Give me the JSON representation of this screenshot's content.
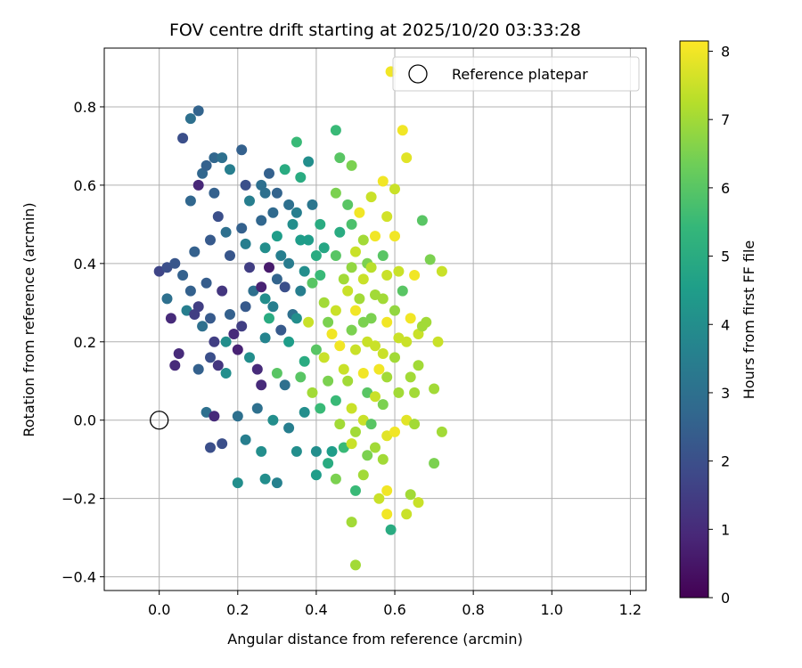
{
  "chart_data": {
    "type": "scatter",
    "title": "FOV centre drift starting at 2025/10/20 03:33:28",
    "xlabel": "Angular distance from reference (arcmin)",
    "ylabel": "Rotation from reference (arcmin)",
    "xlim": [
      -0.14,
      1.24
    ],
    "ylim": [
      -0.435,
      0.95
    ],
    "x_ticks": [
      0.0,
      0.2,
      0.4,
      0.6,
      0.8,
      1.0,
      1.2
    ],
    "x_tick_labels": [
      "0.0",
      "0.2",
      "0.4",
      "0.6",
      "0.8",
      "1.0",
      "1.2"
    ],
    "y_ticks": [
      -0.4,
      -0.2,
      0.0,
      0.2,
      0.4,
      0.6,
      0.8
    ],
    "y_tick_labels": [
      "−0.4",
      "−0.2",
      "0.0",
      "0.2",
      "0.4",
      "0.6",
      "0.8"
    ],
    "grid": true,
    "legend": {
      "location": "top-right",
      "entries": [
        "Reference platepar"
      ]
    },
    "reference_point": {
      "x": 0.0,
      "y": 0.0,
      "label": "Reference platepar"
    },
    "colorbar": {
      "label": "Hours from first FF file",
      "colormap": "viridis",
      "range": [
        0,
        8.15
      ],
      "ticks": [
        0,
        1,
        2,
        3,
        4,
        5,
        6,
        7,
        8
      ],
      "tick_labels": [
        "0",
        "1",
        "2",
        "3",
        "4",
        "5",
        "6",
        "7",
        "8"
      ]
    },
    "colormap_stops": [
      "#440154",
      "#482878",
      "#3e4989",
      "#31688e",
      "#26828e",
      "#1f9e89",
      "#35b779",
      "#6ece58",
      "#b5de2b",
      "#fde725"
    ],
    "series": [
      {
        "name": "Hours from first FF file",
        "points": [
          [
            0.06,
            0.72,
            2.0
          ],
          [
            0.1,
            0.79,
            2.6
          ],
          [
            0.08,
            0.77,
            3.0
          ],
          [
            0.02,
            0.31,
            3.0
          ],
          [
            0.03,
            0.26,
            1.0
          ],
          [
            0.05,
            0.17,
            1.0
          ],
          [
            0.04,
            0.14,
            1.0
          ],
          [
            0.0,
            0.38,
            1.7
          ],
          [
            0.02,
            0.39,
            2.0
          ],
          [
            0.04,
            0.4,
            2.2
          ],
          [
            0.06,
            0.37,
            2.5
          ],
          [
            0.08,
            0.33,
            2.5
          ],
          [
            0.07,
            0.28,
            3.5
          ],
          [
            0.09,
            0.27,
            1.5
          ],
          [
            0.1,
            0.29,
            1.5
          ],
          [
            0.09,
            0.43,
            2.5
          ],
          [
            0.1,
            0.6,
            0.9
          ],
          [
            0.08,
            0.56,
            2.7
          ],
          [
            0.11,
            0.63,
            2.7
          ],
          [
            0.12,
            0.65,
            2.5
          ],
          [
            0.14,
            0.58,
            2.5
          ],
          [
            0.14,
            0.67,
            2.7
          ],
          [
            0.15,
            0.52,
            2.0
          ],
          [
            0.13,
            0.46,
            2.3
          ],
          [
            0.12,
            0.35,
            2.4
          ],
          [
            0.13,
            0.26,
            2.3
          ],
          [
            0.11,
            0.24,
            3.0
          ],
          [
            0.14,
            0.2,
            1.5
          ],
          [
            0.13,
            0.16,
            2.0
          ],
          [
            0.15,
            0.14,
            1.3
          ],
          [
            0.1,
            0.13,
            2.5
          ],
          [
            0.12,
            0.02,
            3.0
          ],
          [
            0.14,
            0.01,
            1.0
          ],
          [
            0.13,
            -0.07,
            2.0
          ],
          [
            0.16,
            0.67,
            3.0
          ],
          [
            0.18,
            0.64,
            3.5
          ],
          [
            0.17,
            0.48,
            3.0
          ],
          [
            0.18,
            0.42,
            2.2
          ],
          [
            0.16,
            0.33,
            1.3
          ],
          [
            0.18,
            0.27,
            2.5
          ],
          [
            0.17,
            0.2,
            4.0
          ],
          [
            0.19,
            0.22,
            1.0
          ],
          [
            0.2,
            0.18,
            0.8
          ],
          [
            0.17,
            0.12,
            4.0
          ],
          [
            0.16,
            -0.06,
            2.0
          ],
          [
            0.2,
            0.01,
            3.0
          ],
          [
            0.2,
            -0.16,
            4.0
          ],
          [
            0.21,
            0.69,
            2.5
          ],
          [
            0.22,
            0.6,
            2.0
          ],
          [
            0.23,
            0.56,
            3.5
          ],
          [
            0.21,
            0.49,
            2.5
          ],
          [
            0.22,
            0.45,
            3.5
          ],
          [
            0.23,
            0.39,
            1.5
          ],
          [
            0.24,
            0.33,
            3.0
          ],
          [
            0.22,
            0.29,
            2.3
          ],
          [
            0.21,
            0.24,
            1.5
          ],
          [
            0.23,
            0.16,
            4.0
          ],
          [
            0.25,
            0.13,
            1.0
          ],
          [
            0.22,
            -0.05,
            3.5
          ],
          [
            0.26,
            0.6,
            3.0
          ],
          [
            0.27,
            0.58,
            3.0
          ],
          [
            0.26,
            0.51,
            2.7
          ],
          [
            0.27,
            0.44,
            4.0
          ],
          [
            0.28,
            0.39,
            0.6
          ],
          [
            0.26,
            0.34,
            0.8
          ],
          [
            0.27,
            0.31,
            4.0
          ],
          [
            0.28,
            0.26,
            5.0
          ],
          [
            0.27,
            0.21,
            3.7
          ],
          [
            0.26,
            0.09,
            1.0
          ],
          [
            0.25,
            0.03,
            3.0
          ],
          [
            0.26,
            -0.08,
            4.0
          ],
          [
            0.27,
            -0.15,
            4.0
          ],
          [
            0.28,
            0.63,
            2.5
          ],
          [
            0.3,
            0.58,
            2.6
          ],
          [
            0.29,
            0.53,
            2.8
          ],
          [
            0.3,
            0.47,
            4.5
          ],
          [
            0.31,
            0.42,
            3.5
          ],
          [
            0.3,
            0.36,
            2.6
          ],
          [
            0.29,
            0.29,
            3.5
          ],
          [
            0.31,
            0.23,
            2.3
          ],
          [
            0.3,
            0.12,
            6.0
          ],
          [
            0.29,
            0.0,
            4.0
          ],
          [
            0.3,
            -0.16,
            3.6
          ],
          [
            0.32,
            0.64,
            5.0
          ],
          [
            0.33,
            0.55,
            3.0
          ],
          [
            0.34,
            0.5,
            4.0
          ],
          [
            0.33,
            0.4,
            3.4
          ],
          [
            0.32,
            0.34,
            2.0
          ],
          [
            0.34,
            0.27,
            3.0
          ],
          [
            0.33,
            0.2,
            4.5
          ],
          [
            0.32,
            0.09,
            3.0
          ],
          [
            0.33,
            -0.02,
            3.5
          ],
          [
            0.35,
            0.71,
            5.5
          ],
          [
            0.36,
            0.62,
            5.0
          ],
          [
            0.35,
            0.53,
            3.5
          ],
          [
            0.36,
            0.46,
            4.5
          ],
          [
            0.37,
            0.38,
            4.0
          ],
          [
            0.36,
            0.33,
            3.5
          ],
          [
            0.35,
            0.26,
            4.0
          ],
          [
            0.37,
            0.15,
            5.0
          ],
          [
            0.36,
            0.11,
            6.0
          ],
          [
            0.35,
            -0.08,
            4.0
          ],
          [
            0.38,
            0.66,
            4.0
          ],
          [
            0.39,
            0.55,
            3.2
          ],
          [
            0.38,
            0.46,
            4.5
          ],
          [
            0.4,
            0.42,
            5.0
          ],
          [
            0.39,
            0.35,
            6.0
          ],
          [
            0.38,
            0.25,
            7.5
          ],
          [
            0.4,
            0.18,
            6.0
          ],
          [
            0.39,
            0.07,
            7.0
          ],
          [
            0.37,
            0.02,
            4.0
          ],
          [
            0.4,
            -0.08,
            4.0
          ],
          [
            0.4,
            -0.14,
            4.5
          ],
          [
            0.41,
            0.5,
            5.0
          ],
          [
            0.42,
            0.44,
            4.8
          ],
          [
            0.41,
            0.37,
            5.5
          ],
          [
            0.42,
            0.3,
            7.0
          ],
          [
            0.43,
            0.25,
            6.5
          ],
          [
            0.42,
            0.16,
            7.5
          ],
          [
            0.43,
            0.1,
            6.5
          ],
          [
            0.44,
            0.22,
            8.0
          ],
          [
            0.41,
            0.03,
            5.5
          ],
          [
            0.44,
            -0.08,
            4.5
          ],
          [
            0.43,
            -0.11,
            5.0
          ],
          [
            0.45,
            0.74,
            5.5
          ],
          [
            0.46,
            0.67,
            6.0
          ],
          [
            0.45,
            0.58,
            6.5
          ],
          [
            0.46,
            0.48,
            5.0
          ],
          [
            0.45,
            0.42,
            6.0
          ],
          [
            0.47,
            0.36,
            7.0
          ],
          [
            0.45,
            0.28,
            7.5
          ],
          [
            0.46,
            0.19,
            8.0
          ],
          [
            0.47,
            0.13,
            7.5
          ],
          [
            0.45,
            0.05,
            5.5
          ],
          [
            0.46,
            -0.01,
            7.0
          ],
          [
            0.47,
            -0.07,
            5.5
          ],
          [
            0.45,
            -0.15,
            6.5
          ],
          [
            0.49,
            0.65,
            6.5
          ],
          [
            0.48,
            0.55,
            6.0
          ],
          [
            0.49,
            0.5,
            5.8
          ],
          [
            0.5,
            0.43,
            7.5
          ],
          [
            0.49,
            0.39,
            6.8
          ],
          [
            0.48,
            0.33,
            7.5
          ],
          [
            0.5,
            0.28,
            8.0
          ],
          [
            0.49,
            0.23,
            6.5
          ],
          [
            0.5,
            0.18,
            7.5
          ],
          [
            0.48,
            0.1,
            7.0
          ],
          [
            0.49,
            0.03,
            7.5
          ],
          [
            0.5,
            -0.03,
            7.0
          ],
          [
            0.49,
            -0.06,
            7.5
          ],
          [
            0.5,
            -0.18,
            5.5
          ],
          [
            0.49,
            -0.26,
            7.0
          ],
          [
            0.5,
            -0.37,
            7.0
          ],
          [
            0.51,
            0.53,
            8.0
          ],
          [
            0.52,
            0.46,
            7.0
          ],
          [
            0.53,
            0.4,
            6.5
          ],
          [
            0.52,
            0.36,
            7.5
          ],
          [
            0.51,
            0.31,
            7.0
          ],
          [
            0.52,
            0.25,
            6.5
          ],
          [
            0.53,
            0.2,
            7.5
          ],
          [
            0.52,
            0.12,
            8.0
          ],
          [
            0.53,
            0.07,
            6.0
          ],
          [
            0.52,
            0.0,
            7.5
          ],
          [
            0.53,
            -0.09,
            6.5
          ],
          [
            0.52,
            -0.14,
            7.0
          ],
          [
            0.54,
            0.57,
            7.5
          ],
          [
            0.55,
            0.47,
            8.0
          ],
          [
            0.54,
            0.39,
            7.3
          ],
          [
            0.55,
            0.32,
            7.0
          ],
          [
            0.54,
            0.26,
            6.5
          ],
          [
            0.55,
            0.19,
            7.5
          ],
          [
            0.56,
            0.13,
            8.0
          ],
          [
            0.55,
            0.06,
            7.5
          ],
          [
            0.54,
            -0.01,
            6.0
          ],
          [
            0.55,
            -0.07,
            7.0
          ],
          [
            0.56,
            -0.2,
            7.5
          ],
          [
            0.57,
            0.61,
            8.0
          ],
          [
            0.58,
            0.52,
            7.6
          ],
          [
            0.57,
            0.42,
            6.0
          ],
          [
            0.58,
            0.37,
            7.5
          ],
          [
            0.57,
            0.31,
            7.0
          ],
          [
            0.58,
            0.25,
            8.0
          ],
          [
            0.57,
            0.17,
            7.5
          ],
          [
            0.58,
            0.11,
            7.0
          ],
          [
            0.57,
            0.04,
            6.5
          ],
          [
            0.58,
            -0.04,
            7.8
          ],
          [
            0.57,
            -0.1,
            7.0
          ],
          [
            0.58,
            -0.18,
            8.0
          ],
          [
            0.58,
            -0.24,
            8.0
          ],
          [
            0.59,
            0.89,
            8.0
          ],
          [
            0.6,
            0.59,
            7.5
          ],
          [
            0.6,
            0.47,
            8.0
          ],
          [
            0.61,
            0.38,
            7.5
          ],
          [
            0.6,
            0.28,
            6.8
          ],
          [
            0.61,
            0.21,
            7.5
          ],
          [
            0.6,
            0.16,
            7.0
          ],
          [
            0.61,
            0.07,
            7.0
          ],
          [
            0.6,
            -0.03,
            8.0
          ],
          [
            0.59,
            -0.28,
            5.0
          ],
          [
            0.62,
            0.74,
            8.0
          ],
          [
            0.63,
            0.67,
            7.8
          ],
          [
            0.62,
            0.33,
            6.0
          ],
          [
            0.64,
            0.26,
            8.0
          ],
          [
            0.63,
            0.2,
            7.5
          ],
          [
            0.64,
            0.11,
            7.0
          ],
          [
            0.63,
            0.0,
            7.8
          ],
          [
            0.65,
            -0.01,
            7.0
          ],
          [
            0.64,
            -0.19,
            7.0
          ],
          [
            0.63,
            -0.24,
            7.5
          ],
          [
            0.65,
            0.37,
            8.0
          ],
          [
            0.65,
            0.07,
            7.0
          ],
          [
            0.66,
            0.14,
            7.0
          ],
          [
            0.66,
            0.22,
            7.5
          ],
          [
            0.67,
            0.24,
            7.0
          ],
          [
            0.66,
            -0.21,
            7.5
          ],
          [
            0.67,
            0.51,
            6.0
          ],
          [
            0.68,
            0.25,
            7.0
          ],
          [
            0.69,
            0.41,
            6.5
          ],
          [
            0.7,
            -0.11,
            6.5
          ],
          [
            0.7,
            0.08,
            7.0
          ],
          [
            0.71,
            0.2,
            7.5
          ],
          [
            0.72,
            -0.03,
            7.0
          ],
          [
            0.72,
            0.38,
            7.5
          ]
        ]
      }
    ]
  }
}
